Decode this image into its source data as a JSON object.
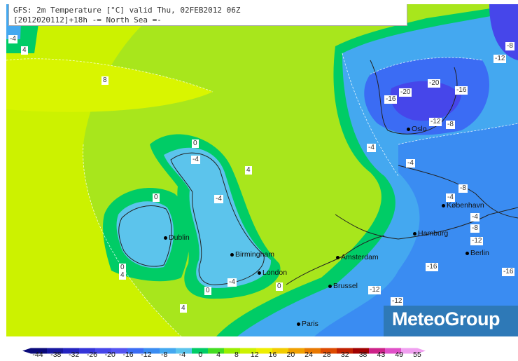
{
  "header": {
    "line1": "GFS: 2m Temperature [°C] valid Thu, 02FEB2012 06Z",
    "line2": "[2012020112]+18h -= North Sea =-"
  },
  "brand": {
    "logo_text": "MeteoGroup",
    "color": "#2e79b7"
  },
  "cities": [
    {
      "id": "oslo",
      "name": "Oslo"
    },
    {
      "id": "kobenhavn",
      "name": "København"
    },
    {
      "id": "hamburg",
      "name": "Hamburg"
    },
    {
      "id": "berlin",
      "name": "Berlin"
    },
    {
      "id": "dublin",
      "name": "Dublin"
    },
    {
      "id": "birmingham",
      "name": "Birmingham"
    },
    {
      "id": "london",
      "name": "London"
    },
    {
      "id": "amsterdam",
      "name": "Amsterdam"
    },
    {
      "id": "brussel",
      "name": "Brussel"
    },
    {
      "id": "paris",
      "name": "Paris"
    }
  ],
  "contour_labels": [
    "-4",
    "4",
    "8",
    "-20",
    "-20",
    "-16",
    "-16",
    "-12",
    "-8",
    "-4",
    "-12",
    "-4",
    "-8",
    "-4",
    "-8",
    "-12",
    "-4",
    "-4",
    "0",
    "4",
    "0",
    "-4",
    "0",
    "4",
    "0",
    "-4",
    "0",
    "4",
    "-16",
    "-12",
    "-12",
    "-16",
    "-8"
  ],
  "legend": {
    "ticks": [
      "-44",
      "-38",
      "-32",
      "-26",
      "-20",
      "-16",
      "-12",
      "-8",
      "-4",
      "0",
      "4",
      "8",
      "12",
      "16",
      "20",
      "24",
      "28",
      "32",
      "38",
      "43",
      "49",
      "55"
    ],
    "colors": [
      "#0a0a7a",
      "#1818a0",
      "#2424c0",
      "#3434d8",
      "#4646ea",
      "#5454f2",
      "#3b6cf4",
      "#3a8cf2",
      "#44a8f0",
      "#5cc4ec",
      "#00cc66",
      "#44dd22",
      "#99ee00",
      "#ccf200",
      "#eeee00",
      "#f2cc00",
      "#f0a000",
      "#e87800",
      "#dd4a00",
      "#c02000",
      "#a00000",
      "#cc2288",
      "#e050c8",
      "#f0a0f0"
    ]
  }
}
